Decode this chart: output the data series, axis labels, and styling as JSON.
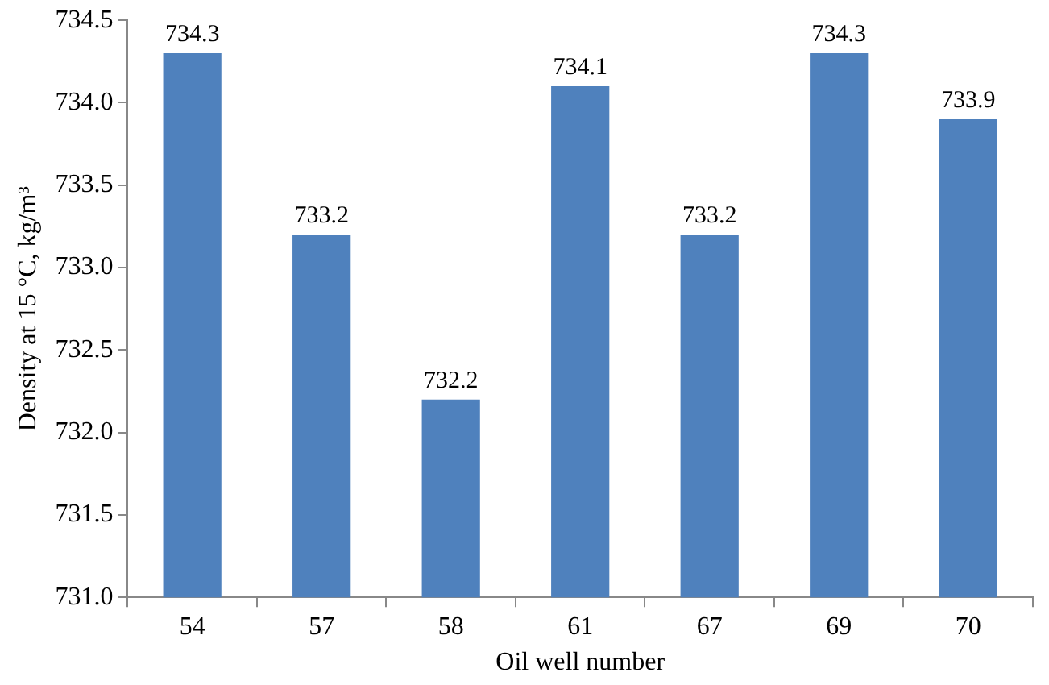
{
  "chart_data": {
    "type": "bar",
    "xlabel": "Oil well number",
    "ylabel": "Density at 15 °C, kg/m³",
    "categories": [
      "54",
      "57",
      "58",
      "61",
      "67",
      "69",
      "70"
    ],
    "values": [
      734.3,
      733.2,
      732.2,
      734.1,
      733.2,
      734.3,
      733.9
    ],
    "color": "#4f81bd",
    "ylim": [
      731.0,
      734.5
    ],
    "yticks": [
      {
        "value": 731.0,
        "label": "731.0"
      },
      {
        "value": 731.5,
        "label": "731.5"
      },
      {
        "value": 732.0,
        "label": "732.0"
      },
      {
        "value": 732.5,
        "label": "732.5"
      },
      {
        "value": 733.0,
        "label": "733.0"
      },
      {
        "value": 733.5,
        "label": "733.5"
      },
      {
        "value": 734.0,
        "label": "734.0"
      },
      {
        "value": 734.5,
        "label": "734.5"
      }
    ],
    "grid": false,
    "legend": false,
    "data_labels": true
  }
}
